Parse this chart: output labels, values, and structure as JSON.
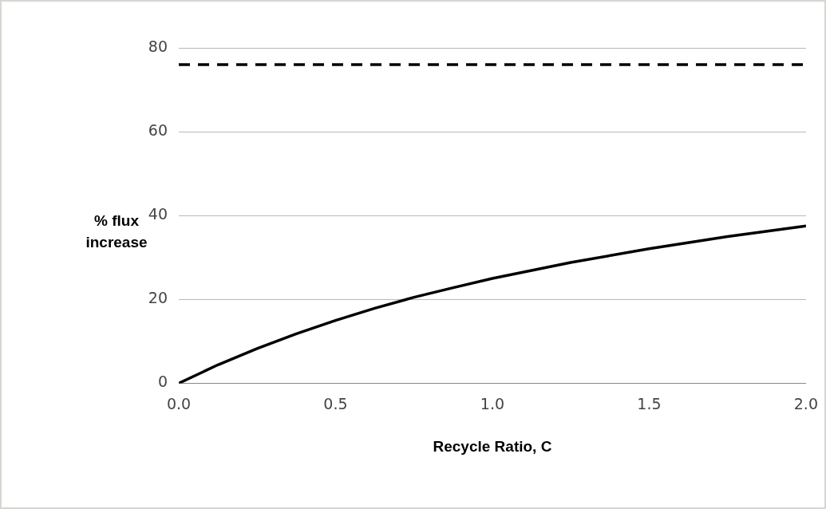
{
  "chart_data": {
    "type": "line",
    "xlabel": "Recycle Ratio, C",
    "ylabel": "% flux increase",
    "x": [
      0,
      0.125,
      0.25,
      0.375,
      0.5,
      0.625,
      0.75,
      0.875,
      1.0,
      1.25,
      1.5,
      1.75,
      2.0
    ],
    "series": [
      {
        "color": "#000000",
        "values": [
          0,
          4.4,
          8.3,
          11.8,
          15,
          17.9,
          20.5,
          22.8,
          25,
          28.8,
          32.1,
          35,
          37.5
        ]
      }
    ],
    "xlim": [
      0,
      2
    ],
    "xticks": [
      {
        "value": 0,
        "label": "0.0"
      },
      {
        "value": 0.5,
        "label": "0.5"
      },
      {
        "value": 1,
        "label": "1.0"
      },
      {
        "value": 1.5,
        "label": "1.5"
      },
      {
        "value": 2,
        "label": "2.0"
      }
    ],
    "ylim": [
      0,
      80
    ],
    "yticks": [
      0,
      20,
      40,
      60,
      80
    ],
    "ref_lines": [
      {
        "axis": "y",
        "value": 76,
        "color": "#000000",
        "line_style": "dashed"
      }
    ],
    "grid": "y",
    "marker": "none",
    "line_style": "solid",
    "legend": false
  }
}
